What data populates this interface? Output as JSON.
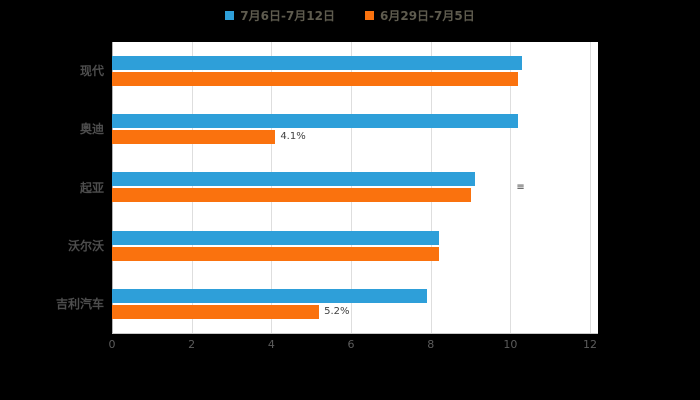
{
  "colors": {
    "background": "#000000",
    "plot_background": "#ffffff",
    "gridline": "#dedede",
    "axis_line": "#c9c9c9",
    "series_blue": "#2e9fd9",
    "series_orange": "#fa720e",
    "legend_text": "#5e5b4e",
    "category_text": "#4d4d4d",
    "tick_text": "#5c5c5c"
  },
  "chart_data": {
    "type": "bar",
    "orientation": "horizontal",
    "title": "",
    "categories": [
      "现代",
      "奥迪",
      "起亚",
      "沃尔沃",
      "吉利汽车"
    ],
    "series": [
      {
        "name": "7月6日-7月12日",
        "color": "#2e9fd9",
        "values": [
          10.3,
          10.2,
          9.1,
          8.2,
          7.9
        ]
      },
      {
        "name": "6月29日-7月5日",
        "color": "#fa720e",
        "values": [
          10.2,
          4.1,
          9.0,
          8.2,
          5.2
        ]
      }
    ],
    "xlim": [
      0,
      12
    ],
    "xticks": [
      0,
      2,
      4,
      6,
      8,
      10,
      12
    ],
    "grid": true,
    "legend_position": "top",
    "annotations": [
      {
        "category": "奥迪",
        "series_index": 1,
        "text": "4.1%"
      },
      {
        "category": "吉利汽车",
        "series_index": 1,
        "text": "5.2%"
      },
      {
        "category": "起亚",
        "x": 10.15,
        "text": "≡"
      }
    ]
  }
}
